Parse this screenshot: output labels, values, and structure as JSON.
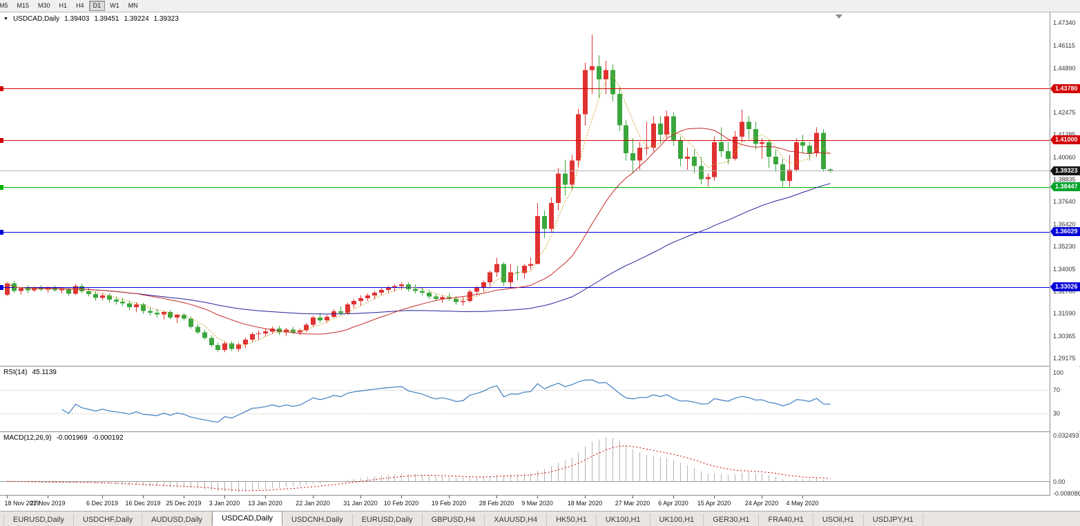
{
  "header": {
    "symbol": "USDCAD,Daily",
    "open": "1.39403",
    "high": "1.39451",
    "low": "1.39224",
    "close": "1.39323"
  },
  "toolbar": {
    "timeframes": [
      {
        "label": "M5",
        "active": false
      },
      {
        "label": "M15",
        "active": false
      },
      {
        "label": "M30",
        "active": false
      },
      {
        "label": "H1",
        "active": false
      },
      {
        "label": "H4",
        "active": false
      },
      {
        "label": "D1",
        "active": true
      },
      {
        "label": "W1",
        "active": false
      },
      {
        "label": "MN",
        "active": false
      }
    ]
  },
  "panels": {
    "rsi": {
      "label": "RSI(14)",
      "value": "45.1139",
      "axis": [
        {
          "text": "100",
          "v": 100
        },
        {
          "text": "70",
          "v": 70
        },
        {
          "text": "30",
          "v": 30
        }
      ]
    },
    "macd": {
      "label": "MACD(12,26,9)",
      "value1": "-0.001969",
      "value2": "-0.000192",
      "axis": [
        {
          "text": "0.032493",
          "v": 0.032493
        },
        {
          "text": "0.00",
          "v": 0
        },
        {
          "text": "-0.008086",
          "v": -0.008086
        }
      ]
    }
  },
  "price_axis": {
    "ticks": [
      "1.47340",
      "1.46115",
      "1.44890",
      "1.42475",
      "1.41285",
      "1.40060",
      "1.38835",
      "1.37640",
      "1.36420",
      "1.35230",
      "1.34005",
      "1.32780",
      "1.31590",
      "1.30365",
      "1.29175"
    ],
    "badges": [
      {
        "text": "1.43780",
        "price": 1.4378,
        "color": "#d10000"
      },
      {
        "text": "1.41000",
        "price": 1.41,
        "color": "#d10000"
      },
      {
        "text": "1.39323",
        "price": 1.39323,
        "color": "#151515"
      },
      {
        "text": "1.38447",
        "price": 1.38447,
        "color": "#00a32a"
      },
      {
        "text": "1.36029",
        "price": 1.36029,
        "color": "#0000d6"
      },
      {
        "text": "1.33026",
        "price": 1.33026,
        "color": "#0000d6"
      }
    ]
  },
  "time_axis": {
    "labels": [
      {
        "text": "18 Nov 2019",
        "i": 0
      },
      {
        "text": "27 Nov 2019",
        "i": 6
      },
      {
        "text": "6 Dec 2019",
        "i": 14
      },
      {
        "text": "16 Dec 2019",
        "i": 20
      },
      {
        "text": "25 Dec 2019",
        "i": 26
      },
      {
        "text": "3 Jan 2020",
        "i": 32
      },
      {
        "text": "13 Jan 2020",
        "i": 38
      },
      {
        "text": "22 Jan 2020",
        "i": 45
      },
      {
        "text": "31 Jan 2020",
        "i": 52
      },
      {
        "text": "10 Feb 2020",
        "i": 58
      },
      {
        "text": "19 Feb 2020",
        "i": 65
      },
      {
        "text": "28 Feb 2020",
        "i": 72
      },
      {
        "text": "9 Mar 2020",
        "i": 78
      },
      {
        "text": "18 Mar 2020",
        "i": 85
      },
      {
        "text": "27 Mar 2020",
        "i": 92
      },
      {
        "text": "6 Apr 2020",
        "i": 98
      },
      {
        "text": "15 Apr 2020",
        "i": 104
      },
      {
        "text": "24 Apr 2020",
        "i": 111
      },
      {
        "text": "4 May 2020",
        "i": 117
      }
    ]
  },
  "tabs": [
    {
      "label": "EURUSD,Daily",
      "active": false
    },
    {
      "label": "USDCHF,Daily",
      "active": false
    },
    {
      "label": "AUDUSD,Daily",
      "active": false
    },
    {
      "label": "USDCAD,Daily",
      "active": true
    },
    {
      "label": "USDCNH,Daily",
      "active": false
    },
    {
      "label": "EURUSD,Daily",
      "active": false
    },
    {
      "label": "GBPUSD,H4",
      "active": false
    },
    {
      "label": "XAUUSD,H4",
      "active": false
    },
    {
      "label": "HK50,H1",
      "active": false
    },
    {
      "label": "UK100,H1",
      "active": false
    },
    {
      "label": "UK100,H1",
      "active": false
    },
    {
      "label": "GER30,H1",
      "active": false
    },
    {
      "label": "FRA40,H1",
      "active": false
    },
    {
      "label": "USOil,H1",
      "active": false
    },
    {
      "label": "USDJPY,H1",
      "active": false
    }
  ],
  "chart_data": {
    "type": "candlestick",
    "symbol": "USDCAD",
    "timeframe": "Daily",
    "title": "USDCAD,Daily 1.39403 1.39451 1.39224 1.39323",
    "y_range": [
      1.2876,
      1.479
    ],
    "current_price": 1.39323,
    "colors": {
      "up": "#e03131",
      "down": "#3aa63d",
      "ma_fast": "#c9a227",
      "ma_mid": "#c62828",
      "ma_slow": "#22229b",
      "rsi": "#3e7fc1",
      "macd_signal": "#cc0000",
      "macd_hist": "#b4b4b4"
    },
    "overlays": [
      {
        "name": "MA5",
        "style": "dotted"
      },
      {
        "name": "MA20",
        "style": "solid"
      },
      {
        "name": "MA60",
        "style": "solid"
      }
    ],
    "horizontal_lines": [
      {
        "price": 1.4378,
        "color": "#d10000"
      },
      {
        "price": 1.41,
        "color": "#d10000"
      },
      {
        "price": 1.38447,
        "color": "#00b300"
      },
      {
        "price": 1.36029,
        "color": "#0000d6"
      },
      {
        "price": 1.33026,
        "color": "#0000d6"
      }
    ],
    "rsi": {
      "period": 14,
      "current": 45.1139,
      "levels": [
        70,
        30
      ],
      "range_top": 110
    },
    "macd": {
      "fast": 12,
      "slow": 26,
      "signal": 9,
      "current_macd": -0.001969,
      "current_signal": -0.000192,
      "vmax": 0.0345,
      "vmin": -0.0095
    },
    "ohlc": [
      [
        1.3262,
        1.333,
        1.3255,
        1.3322
      ],
      [
        1.3322,
        1.3335,
        1.3272,
        1.3282
      ],
      [
        1.3282,
        1.3302,
        1.3262,
        1.3296
      ],
      [
        1.3296,
        1.3312,
        1.327,
        1.3286
      ],
      [
        1.3286,
        1.3306,
        1.3276,
        1.33
      ],
      [
        1.33,
        1.3312,
        1.328,
        1.329
      ],
      [
        1.329,
        1.3306,
        1.3272,
        1.33
      ],
      [
        1.33,
        1.331,
        1.3278,
        1.3286
      ],
      [
        1.3286,
        1.33,
        1.3268,
        1.3292
      ],
      [
        1.3292,
        1.3302,
        1.3256,
        1.3266
      ],
      [
        1.3266,
        1.3318,
        1.326,
        1.3308
      ],
      [
        1.3308,
        1.332,
        1.327,
        1.328
      ],
      [
        1.328,
        1.3298,
        1.3252,
        1.3264
      ],
      [
        1.3264,
        1.328,
        1.3228,
        1.3244
      ],
      [
        1.3244,
        1.327,
        1.323,
        1.3258
      ],
      [
        1.3258,
        1.3268,
        1.3218,
        1.3234
      ],
      [
        1.3234,
        1.3252,
        1.3208,
        1.3224
      ],
      [
        1.3224,
        1.3244,
        1.3198,
        1.3214
      ],
      [
        1.3214,
        1.323,
        1.3178,
        1.3194
      ],
      [
        1.3194,
        1.322,
        1.3168,
        1.3208
      ],
      [
        1.3208,
        1.3218,
        1.3158,
        1.3174
      ],
      [
        1.3174,
        1.3194,
        1.3148,
        1.3164
      ],
      [
        1.3164,
        1.3184,
        1.3138,
        1.3154
      ],
      [
        1.3154,
        1.3174,
        1.3128,
        1.3168
      ],
      [
        1.3168,
        1.3178,
        1.3128,
        1.3138
      ],
      [
        1.3138,
        1.3158,
        1.3108,
        1.3152
      ],
      [
        1.3152,
        1.3162,
        1.3122,
        1.3132
      ],
      [
        1.3132,
        1.3142,
        1.3078,
        1.3088
      ],
      [
        1.3088,
        1.3102,
        1.3048,
        1.3058
      ],
      [
        1.3058,
        1.3072,
        1.3018,
        1.3028
      ],
      [
        1.3028,
        1.3042,
        1.2978,
        1.2988
      ],
      [
        1.2988,
        1.3002,
        1.2952,
        1.2962
      ],
      [
        1.2962,
        1.3008,
        1.295,
        1.2998
      ],
      [
        1.2998,
        1.3008,
        1.2958,
        1.2968
      ],
      [
        1.2968,
        1.3002,
        1.2954,
        1.2992
      ],
      [
        1.2992,
        1.3028,
        1.2972,
        1.3018
      ],
      [
        1.3018,
        1.3058,
        1.3002,
        1.3048
      ],
      [
        1.3048,
        1.3068,
        1.3018,
        1.3052
      ],
      [
        1.3052,
        1.3078,
        1.3032,
        1.3062
      ],
      [
        1.3062,
        1.3088,
        1.3048,
        1.3078
      ],
      [
        1.3078,
        1.3092,
        1.3042,
        1.3058
      ],
      [
        1.3058,
        1.3082,
        1.3038,
        1.3072
      ],
      [
        1.3072,
        1.3088,
        1.3048,
        1.3058
      ],
      [
        1.3058,
        1.3078,
        1.3042,
        1.3068
      ],
      [
        1.3068,
        1.3108,
        1.3058,
        1.3098
      ],
      [
        1.3098,
        1.3148,
        1.3088,
        1.3138
      ],
      [
        1.3138,
        1.3162,
        1.3108,
        1.3122
      ],
      [
        1.3122,
        1.3152,
        1.3108,
        1.3142
      ],
      [
        1.3142,
        1.3182,
        1.3132,
        1.3172
      ],
      [
        1.3172,
        1.3198,
        1.3148,
        1.3162
      ],
      [
        1.3162,
        1.3218,
        1.3152,
        1.3208
      ],
      [
        1.3208,
        1.3238,
        1.3188,
        1.3228
      ],
      [
        1.3228,
        1.3258,
        1.3198,
        1.3242
      ],
      [
        1.3242,
        1.3268,
        1.3228,
        1.3258
      ],
      [
        1.3258,
        1.3282,
        1.3238,
        1.3272
      ],
      [
        1.3272,
        1.3298,
        1.3258,
        1.3288
      ],
      [
        1.3288,
        1.3308,
        1.3268,
        1.3298
      ],
      [
        1.3298,
        1.3318,
        1.3278,
        1.3308
      ],
      [
        1.3308,
        1.3328,
        1.3288,
        1.3318
      ],
      [
        1.3318,
        1.3328,
        1.3278,
        1.3292
      ],
      [
        1.3292,
        1.3318,
        1.3268,
        1.3282
      ],
      [
        1.3282,
        1.3298,
        1.3258,
        1.3272
      ],
      [
        1.3272,
        1.3288,
        1.3238,
        1.3252
      ],
      [
        1.3252,
        1.3268,
        1.3228,
        1.3238
      ],
      [
        1.3238,
        1.3258,
        1.3218,
        1.3248
      ],
      [
        1.3248,
        1.3268,
        1.3228,
        1.3238
      ],
      [
        1.3238,
        1.3252,
        1.3208,
        1.3222
      ],
      [
        1.3222,
        1.3248,
        1.3202,
        1.3228
      ],
      [
        1.3228,
        1.3288,
        1.3218,
        1.3278
      ],
      [
        1.3278,
        1.3308,
        1.3258,
        1.3298
      ],
      [
        1.3298,
        1.3338,
        1.3278,
        1.3328
      ],
      [
        1.3328,
        1.3392,
        1.3308,
        1.3382
      ],
      [
        1.3382,
        1.3462,
        1.3358,
        1.3428
      ],
      [
        1.3428,
        1.3438,
        1.3308,
        1.3328
      ],
      [
        1.3328,
        1.3428,
        1.3298,
        1.3382
      ],
      [
        1.3382,
        1.3418,
        1.3338,
        1.3378
      ],
      [
        1.3378,
        1.3428,
        1.3348,
        1.3418
      ],
      [
        1.3418,
        1.3462,
        1.3398,
        1.3428
      ],
      [
        1.3428,
        1.3758,
        1.3428,
        1.3688
      ],
      [
        1.3688,
        1.3718,
        1.3568,
        1.3618
      ],
      [
        1.3618,
        1.3788,
        1.3598,
        1.3758
      ],
      [
        1.3758,
        1.3948,
        1.3718,
        1.3918
      ],
      [
        1.3918,
        1.3992,
        1.3798,
        1.3858
      ],
      [
        1.3858,
        1.4018,
        1.3828,
        1.3988
      ],
      [
        1.3988,
        1.4268,
        1.3948,
        1.4238
      ],
      [
        1.4238,
        1.4518,
        1.4178,
        1.4478
      ],
      [
        1.4478,
        1.4669,
        1.4348,
        1.4498
      ],
      [
        1.4498,
        1.4558,
        1.4328,
        1.4428
      ],
      [
        1.4428,
        1.4528,
        1.4348,
        1.4478
      ],
      [
        1.4478,
        1.4508,
        1.4308,
        1.4348
      ],
      [
        1.4348,
        1.4388,
        1.4148,
        1.4178
      ],
      [
        1.4178,
        1.4208,
        1.3988,
        1.4028
      ],
      [
        1.4028,
        1.4108,
        1.3918,
        1.3988
      ],
      [
        1.3988,
        1.4088,
        1.3938,
        1.4058
      ],
      [
        1.4058,
        1.4198,
        1.4018,
        1.4058
      ],
      [
        1.4058,
        1.4228,
        1.4038,
        1.4188
      ],
      [
        1.4188,
        1.4228,
        1.4078,
        1.4128
      ],
      [
        1.4128,
        1.4258,
        1.4108,
        1.4228
      ],
      [
        1.4228,
        1.4248,
        1.4068,
        1.4098
      ],
      [
        1.4098,
        1.4118,
        1.3958,
        1.3998
      ],
      [
        1.3998,
        1.4058,
        1.3938,
        1.4008
      ],
      [
        1.4008,
        1.4048,
        1.3918,
        1.3958
      ],
      [
        1.3958,
        1.4008,
        1.3858,
        1.3888
      ],
      [
        1.3888,
        1.3918,
        1.3848,
        1.3898
      ],
      [
        1.3898,
        1.4118,
        1.3878,
        1.4088
      ],
      [
        1.4088,
        1.4168,
        1.4008,
        1.4038
      ],
      [
        1.4038,
        1.4088,
        1.3968,
        1.3998
      ],
      [
        1.3998,
        1.4148,
        1.3988,
        1.4118
      ],
      [
        1.4118,
        1.4264,
        1.4088,
        1.4198
      ],
      [
        1.4198,
        1.4228,
        1.4108,
        1.4158
      ],
      [
        1.4158,
        1.4198,
        1.4048,
        1.4078
      ],
      [
        1.4078,
        1.4108,
        1.3998,
        1.4088
      ],
      [
        1.4088,
        1.4098,
        1.3948,
        1.4008
      ],
      [
        1.4008,
        1.4048,
        1.3928,
        1.3968
      ],
      [
        1.3968,
        1.3998,
        1.3848,
        1.3878
      ],
      [
        1.3878,
        1.4018,
        1.3848,
        1.3938
      ],
      [
        1.3938,
        1.4108,
        1.3928,
        1.4088
      ],
      [
        1.4088,
        1.4128,
        1.4028,
        1.4068
      ],
      [
        1.4068,
        1.4088,
        1.3988,
        1.4028
      ],
      [
        1.4028,
        1.4168,
        1.4008,
        1.4138
      ],
      [
        1.4138,
        1.4158,
        1.3928,
        1.3942
      ],
      [
        1.39403,
        1.39451,
        1.39224,
        1.39323
      ]
    ]
  }
}
